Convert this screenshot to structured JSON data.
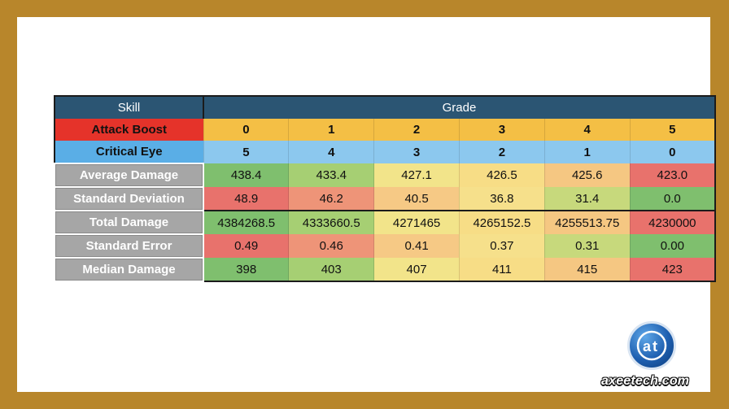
{
  "header": {
    "skill": "Skill",
    "grade": "Grade"
  },
  "rows": {
    "attack": {
      "label": "Attack Boost",
      "values": [
        "0",
        "1",
        "2",
        "3",
        "4",
        "5"
      ]
    },
    "crit": {
      "label": "Critical Eye",
      "values": [
        "5",
        "4",
        "3",
        "2",
        "1",
        "0"
      ]
    },
    "avg": {
      "label": "Average Damage",
      "values": [
        "438.4",
        "433.4",
        "427.1",
        "426.5",
        "425.6",
        "423.0"
      ],
      "colors": [
        "#7fbf6e",
        "#a6cf73",
        "#f2e48a",
        "#f7dd86",
        "#f5c782",
        "#e8726c"
      ]
    },
    "std": {
      "label": "Standard Deviation",
      "values": [
        "48.9",
        "46.2",
        "40.5",
        "36.8",
        "31.4",
        "0.0"
      ],
      "colors": [
        "#e8726c",
        "#ee9478",
        "#f6c985",
        "#f6e08b",
        "#c7d97c",
        "#7fbf6e"
      ]
    },
    "total": {
      "label": "Total Damage",
      "values": [
        "4384268.5",
        "4333660.5",
        "4271465",
        "4265152.5",
        "4255513.75",
        "4230000"
      ],
      "colors": [
        "#7fbf6e",
        "#a6cf73",
        "#f2e48a",
        "#f7dd86",
        "#f5c782",
        "#e8726c"
      ]
    },
    "serr": {
      "label": "Standard Error",
      "values": [
        "0.49",
        "0.46",
        "0.41",
        "0.37",
        "0.31",
        "0.00"
      ],
      "colors": [
        "#e8726c",
        "#ee9478",
        "#f6c985",
        "#f6e08b",
        "#c7d97c",
        "#7fbf6e"
      ]
    },
    "median": {
      "label": "Median Damage",
      "values": [
        "398",
        "403",
        "407",
        "411",
        "415",
        "423"
      ],
      "colors": [
        "#7fbf6e",
        "#a6cf73",
        "#f2e48a",
        "#f7dd86",
        "#f5c782",
        "#e8726c"
      ]
    }
  },
  "logo": {
    "mark": "at",
    "brand": "axeetech.com"
  }
}
